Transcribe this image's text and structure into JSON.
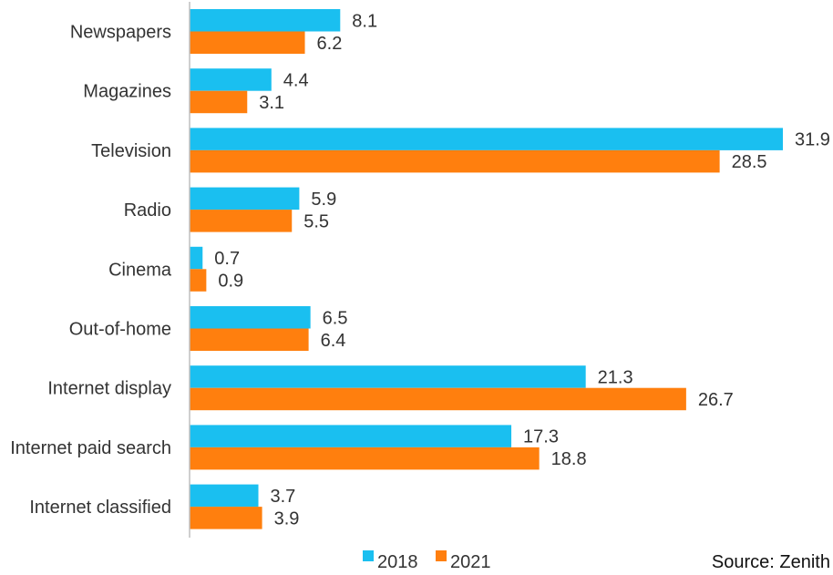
{
  "chart_data": {
    "type": "bar",
    "orientation": "horizontal",
    "title": "",
    "xlabel": "",
    "ylabel": "",
    "xlim": [
      0,
      31.9
    ],
    "grid": false,
    "legend_position": "bottom",
    "categories": [
      "Newspapers",
      "Magazines",
      "Television",
      "Radio",
      "Cinema",
      "Out-of-home",
      "Internet display",
      "Internet paid search",
      "Internet classified"
    ],
    "series": [
      {
        "name": "2018",
        "color": "#1ABFF0",
        "values": [
          8.1,
          4.4,
          31.9,
          5.9,
          0.7,
          6.5,
          21.3,
          17.3,
          3.7
        ],
        "labels": [
          "8.1",
          "4.4",
          "31.9",
          "5.9",
          "0.7",
          "6.5",
          "21.3",
          "17.3",
          "3.7"
        ]
      },
      {
        "name": "2021",
        "color": "#FF7F0E",
        "values": [
          6.2,
          3.1,
          28.5,
          5.5,
          0.9,
          6.4,
          26.7,
          18.8,
          3.9
        ],
        "labels": [
          "6.2",
          "3.1",
          "28.5",
          "5.5",
          "0.9",
          "6.4",
          "26.7",
          "18.8",
          "3.9"
        ]
      }
    ],
    "source": "Source: Zenith"
  }
}
